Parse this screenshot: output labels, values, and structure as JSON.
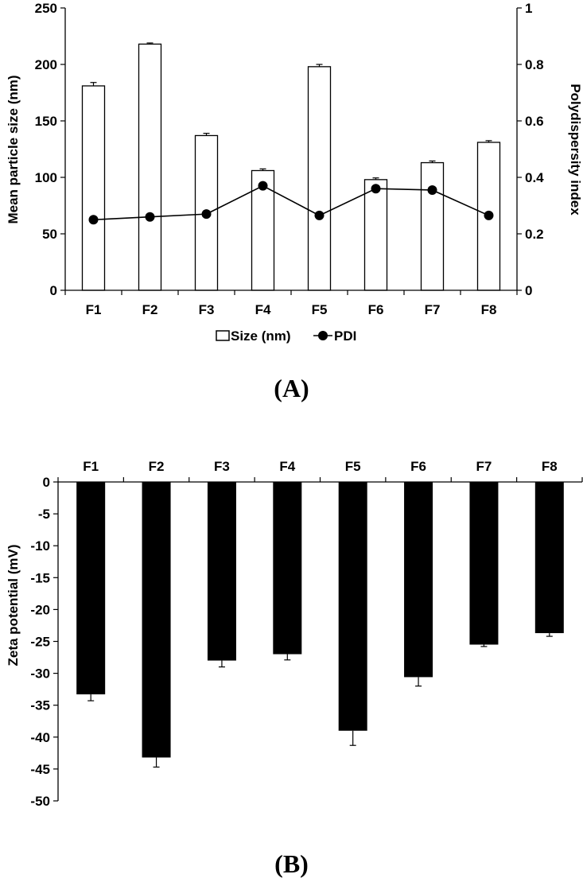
{
  "chart_data": [
    {
      "type": "bar",
      "panel": "(A)",
      "categories": [
        "F1",
        "F2",
        "F3",
        "F4",
        "F5",
        "F6",
        "F7",
        "F8"
      ],
      "series": [
        {
          "name": "Size (nm)",
          "type": "bar",
          "axis": "left",
          "values": [
            181,
            218,
            137,
            106,
            198,
            98,
            113,
            131
          ],
          "errors": [
            3,
            1,
            2,
            1.5,
            2,
            1.5,
            1.5,
            1.5
          ],
          "color": "#ffffff"
        },
        {
          "name": "PDI",
          "type": "line",
          "axis": "right",
          "values": [
            0.25,
            0.26,
            0.27,
            0.37,
            0.265,
            0.36,
            0.355,
            0.265
          ],
          "errors": [
            0.005,
            0.015,
            0.015,
            0.005,
            0.005,
            0.005,
            0.005,
            0.005
          ],
          "color": "#000000"
        }
      ],
      "ylabel": "Mean particle size (nm)",
      "y2label": "Polydispersity index",
      "ylim": [
        0,
        250
      ],
      "yticks": [
        "0",
        "50",
        "100",
        "150",
        "200",
        "250"
      ],
      "y2lim": [
        0,
        1
      ],
      "y2ticks": [
        "0",
        "0.2",
        "0.4",
        "0.6",
        "0.8",
        "1"
      ],
      "legend": [
        "Size (nm)",
        "PDI"
      ],
      "legend_position": "bottom-center",
      "grid": false
    },
    {
      "type": "bar",
      "panel": "(B)",
      "categories": [
        "F1",
        "F2",
        "F3",
        "F4",
        "F5",
        "F6",
        "F7",
        "F8"
      ],
      "series": [
        {
          "values": [
            -33.3,
            -43.2,
            -28.0,
            -27.0,
            -39.0,
            -30.6,
            -25.5,
            -23.7
          ],
          "errors": [
            1.0,
            1.5,
            1.0,
            0.9,
            2.3,
            1.4,
            0.3,
            0.5
          ],
          "color": "#000000"
        }
      ],
      "ylabel": "Zeta potential (mV)",
      "ylim": [
        -50,
        0
      ],
      "yticks": [
        "0",
        "-5",
        "-10",
        "-15",
        "-20",
        "-25",
        "-30",
        "-35",
        "-40",
        "-45",
        "-50"
      ],
      "xaxis_position": "top",
      "grid": false
    }
  ]
}
